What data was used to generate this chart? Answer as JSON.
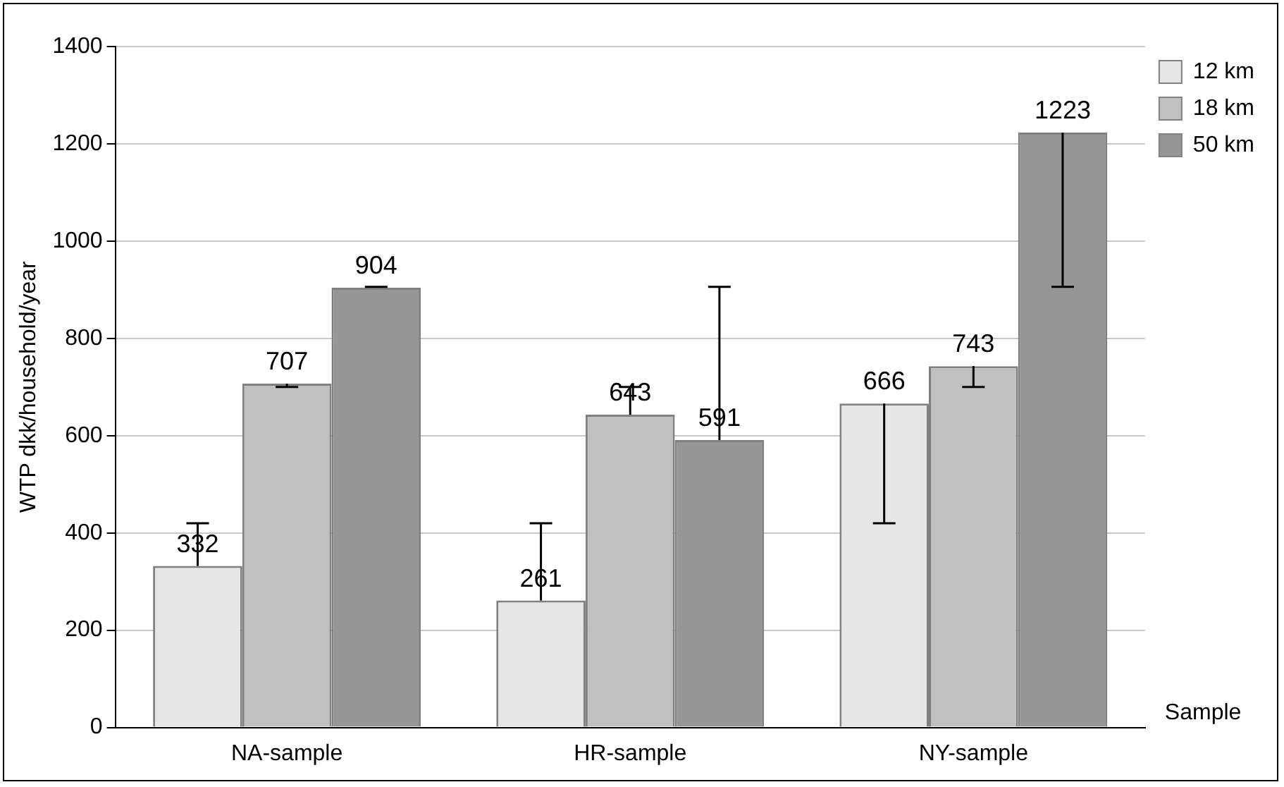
{
  "chart_data": {
    "type": "bar",
    "ylabel": "WTP dkk/household/year",
    "xlabel": "Sample",
    "categories": [
      "NA-sample",
      "HR-sample",
      "NY-sample"
    ],
    "series": [
      {
        "name": "12 km",
        "color": "#e6e6e6",
        "values": [
          332,
          261,
          666
        ],
        "errors": [
          [
            332,
            420
          ],
          [
            261,
            420
          ],
          [
            420,
            666
          ]
        ]
      },
      {
        "name": "18 km",
        "color": "#c0c0c0",
        "values": [
          707,
          643,
          743
        ],
        "errors": [
          [
            700,
            707
          ],
          [
            643,
            700
          ],
          [
            700,
            743
          ]
        ]
      },
      {
        "name": "50 km",
        "color": "#969696",
        "values": [
          904,
          591,
          1223
        ],
        "errors": [
          [
            904,
            906
          ],
          [
            591,
            906
          ],
          [
            906,
            1223
          ]
        ]
      }
    ],
    "ylim": [
      0,
      1400
    ],
    "yticks": [
      0,
      200,
      400,
      600,
      800,
      1000,
      1200,
      1400
    ],
    "grid": "y",
    "legend": "top right",
    "data_labels": true
  }
}
